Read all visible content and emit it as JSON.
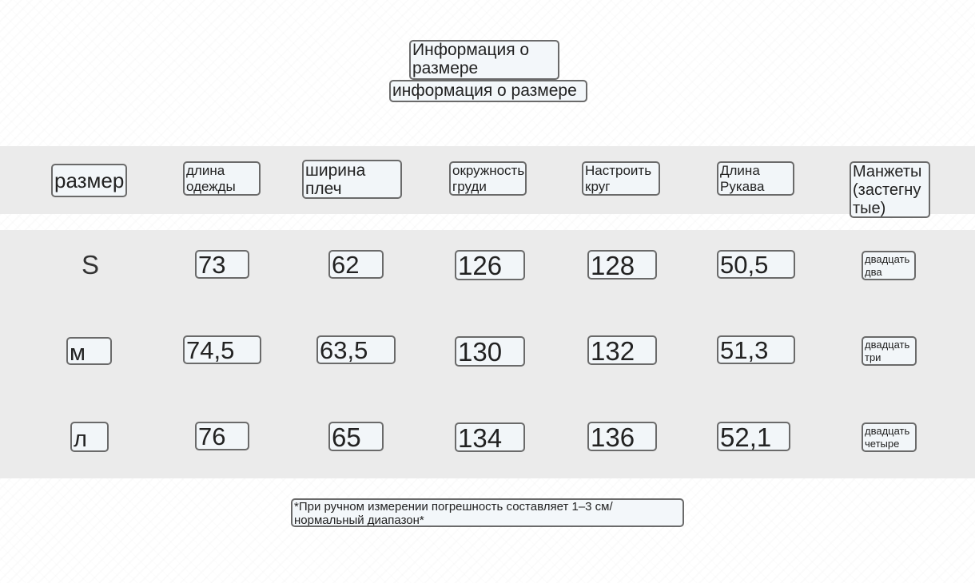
{
  "title": {
    "heading": "Информация о размере",
    "subheading": "информация о размере"
  },
  "table": {
    "columns": [
      "размер",
      "длина одежды",
      "ширина плеч",
      "окружность груди",
      "Настроить круг",
      "Длина Рукава",
      "Манжеты (застегнутые)"
    ],
    "rows": [
      [
        "S",
        "73",
        "62",
        "126",
        "128",
        "50,5",
        "двадцать два"
      ],
      [
        "м",
        "74,5",
        "63,5",
        "130",
        "132",
        "51,3",
        "двадцать три"
      ],
      [
        "л",
        "76",
        "65",
        "134",
        "136",
        "52,1",
        "двадцать четыре"
      ]
    ]
  },
  "footnote": "*При ручном измерении погрешность составляет 1–3 см/ нормальный диапазон*"
}
